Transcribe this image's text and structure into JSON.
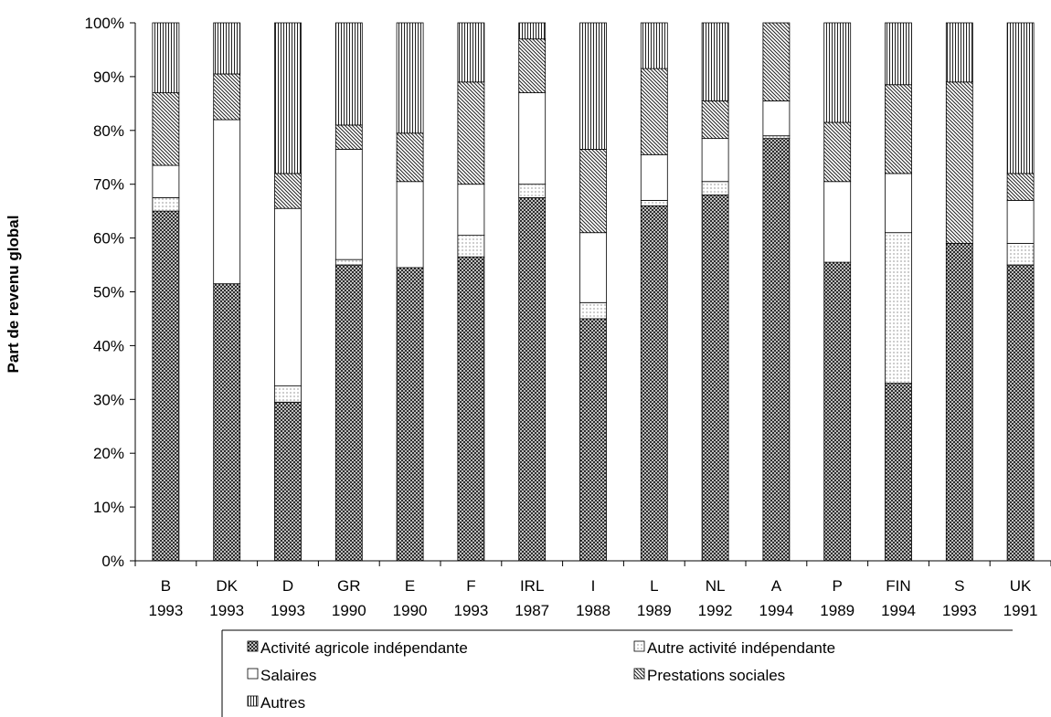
{
  "chart_data": {
    "type": "bar",
    "stacked": true,
    "normalized": true,
    "title": "",
    "xlabel": "",
    "ylabel": "Part de revenu global",
    "ylim": [
      0,
      100
    ],
    "y_ticks": [
      "0%",
      "10%",
      "20%",
      "30%",
      "40%",
      "50%",
      "60%",
      "70%",
      "80%",
      "90%",
      "100%"
    ],
    "grid": false,
    "legend_position": "bottom",
    "categories": [
      {
        "country": "B",
        "year": "1993"
      },
      {
        "country": "DK",
        "year": "1993"
      },
      {
        "country": "D",
        "year": "1993"
      },
      {
        "country": "GR",
        "year": "1990"
      },
      {
        "country": "E",
        "year": "1990"
      },
      {
        "country": "F",
        "year": "1993"
      },
      {
        "country": "IRL",
        "year": "1987"
      },
      {
        "country": "I",
        "year": "1988"
      },
      {
        "country": "L",
        "year": "1989"
      },
      {
        "country": "NL",
        "year": "1992"
      },
      {
        "country": "A",
        "year": "1994"
      },
      {
        "country": "P",
        "year": "1989"
      },
      {
        "country": "FIN",
        "year": "1994"
      },
      {
        "country": "S",
        "year": "1993"
      },
      {
        "country": "UK",
        "year": "1991"
      }
    ],
    "series": [
      {
        "name": "Activité agricole indépendante",
        "pattern": "crosshatch",
        "values": [
          65,
          51.5,
          29.5,
          55,
          54.5,
          56.5,
          67.5,
          45,
          66,
          68,
          78.5,
          55.5,
          33,
          59,
          55
        ]
      },
      {
        "name": "Autre activité indépendante",
        "pattern": "dots",
        "values": [
          2.5,
          0,
          3,
          1,
          0,
          4,
          2.5,
          3,
          1,
          2.5,
          0.5,
          0,
          28,
          0,
          4
        ]
      },
      {
        "name": "Salaires",
        "pattern": "blank",
        "values": [
          6,
          30.5,
          33,
          20.5,
          16,
          9.5,
          17,
          13,
          8.5,
          8,
          6.5,
          15,
          11,
          0,
          8
        ]
      },
      {
        "name": "Prestations sociales",
        "pattern": "diagonal",
        "values": [
          13.5,
          8.5,
          6.5,
          4.5,
          9,
          19,
          10,
          15.5,
          16,
          7,
          14.5,
          11,
          16.5,
          30,
          5
        ]
      },
      {
        "name": "Autres",
        "pattern": "vertical",
        "values": [
          13,
          9.5,
          28,
          19,
          20.5,
          11,
          3,
          23.5,
          8.5,
          14.5,
          0,
          18.5,
          11.5,
          11,
          28
        ]
      }
    ]
  }
}
